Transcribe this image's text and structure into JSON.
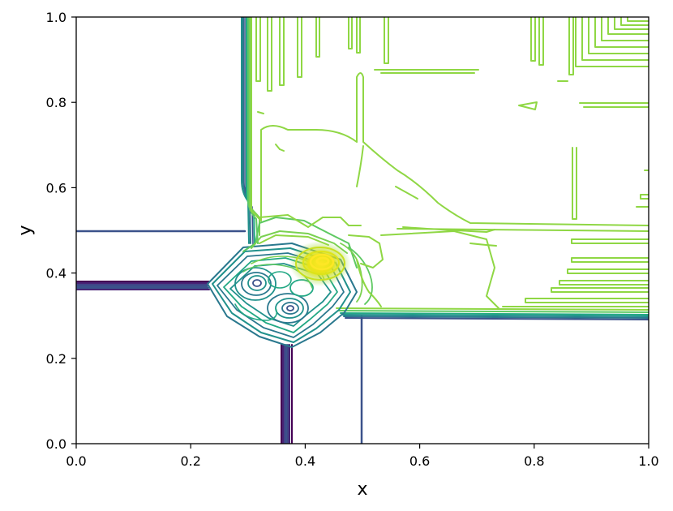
{
  "chart_data": {
    "type": "contour",
    "title": "",
    "xlabel": "x",
    "ylabel": "y",
    "xlim": [
      0.0,
      1.0
    ],
    "ylim": [
      0.0,
      1.0
    ],
    "x_ticks": [
      "0.0",
      "0.2",
      "0.4",
      "0.6",
      "0.8",
      "1.0"
    ],
    "y_ticks": [
      "0.0",
      "0.2",
      "0.4",
      "0.6",
      "0.8",
      "1.0"
    ],
    "grid": false,
    "legend": "none",
    "colormap": "viridis",
    "colors": {
      "dark": "#440154",
      "blue": "#3b528b",
      "teal": "#21918c",
      "green": "#5ec962",
      "lime": "#8fd744",
      "yellow": "#fde725"
    }
  }
}
